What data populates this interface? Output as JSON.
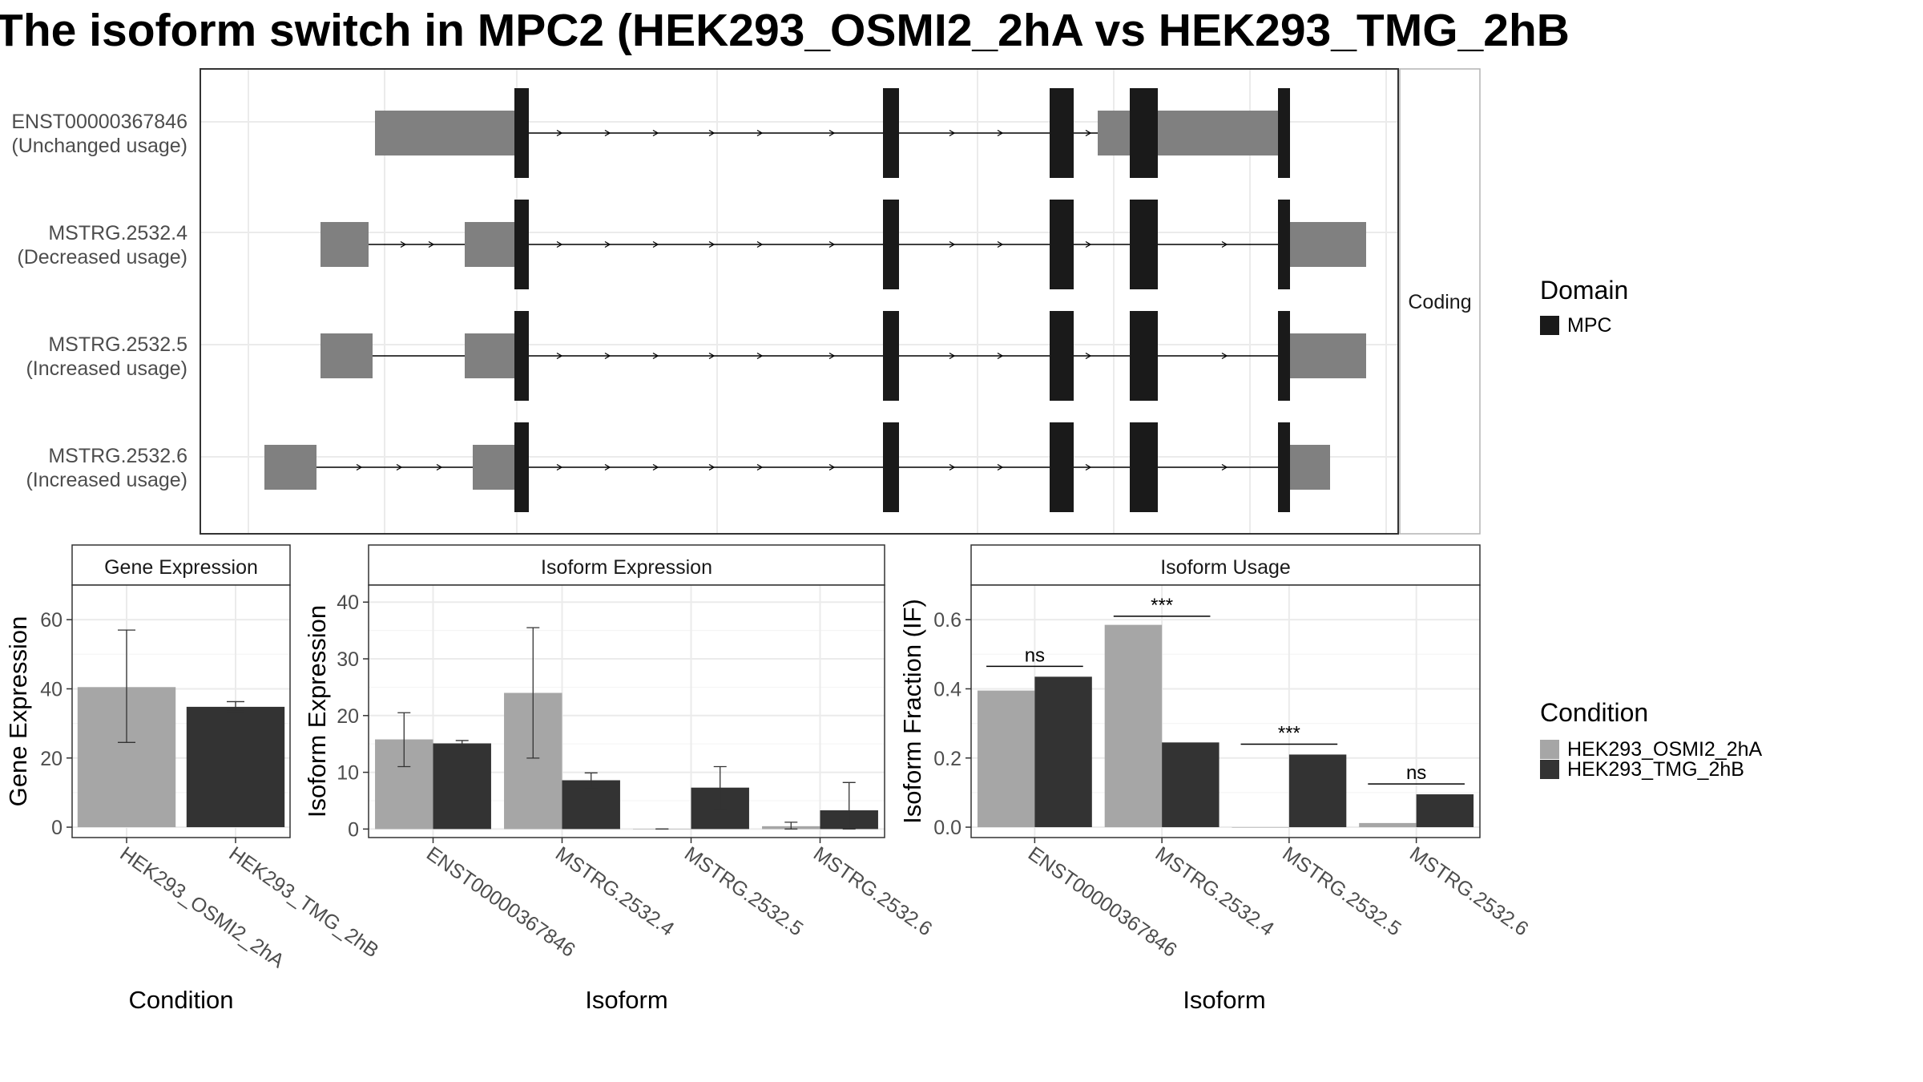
{
  "title": "The isoform switch in MPC2 (HEK293_OSMI2_2hA vs HEK293_TMG_2hB",
  "colors": {
    "utr": "#808080",
    "domain": "#1a1a1a",
    "cond_a": "#a6a6a6",
    "cond_b": "#333333",
    "grid": "#ebebeb",
    "strip": "#ffffff",
    "panel_border": "#333333"
  },
  "structure": {
    "strip_label": "Coding",
    "isoforms": [
      {
        "id": "ENST00000367846",
        "usage": "(Unchanged usage)",
        "utr": [
          [
            218,
            392
          ],
          [
            1120,
            1360
          ]
        ],
        "cds": [
          [
            392,
            410
          ],
          [
            852,
            872
          ],
          [
            1060,
            1090
          ],
          [
            1160,
            1195
          ],
          [
            1345,
            1360
          ]
        ],
        "arrows": [
          450,
          510,
          570,
          640,
          700,
          790,
          940,
          1000,
          1110,
          1280
        ]
      },
      {
        "id": "MSTRG.2532.4",
        "usage": "(Decreased usage)",
        "utr": [
          [
            150,
            210
          ],
          [
            330,
            392
          ],
          [
            1360,
            1455
          ]
        ],
        "cds": [
          [
            392,
            410
          ],
          [
            852,
            872
          ],
          [
            1060,
            1090
          ],
          [
            1160,
            1195
          ],
          [
            1345,
            1360
          ]
        ],
        "arrows": [
          255,
          290,
          450,
          510,
          570,
          640,
          700,
          790,
          940,
          1000,
          1110,
          1280
        ]
      },
      {
        "id": "MSTRG.2532.5",
        "usage": "(Increased usage)",
        "utr": [
          [
            150,
            215
          ],
          [
            330,
            392
          ],
          [
            1360,
            1455
          ]
        ],
        "cds": [
          [
            392,
            410
          ],
          [
            852,
            872
          ],
          [
            1060,
            1090
          ],
          [
            1160,
            1195
          ],
          [
            1345,
            1360
          ]
        ],
        "arrows": [
          450,
          510,
          570,
          640,
          700,
          790,
          940,
          1000,
          1110,
          1280
        ]
      },
      {
        "id": "MSTRG.2532.6",
        "usage": "(Increased usage)",
        "utr": [
          [
            80,
            145
          ],
          [
            340,
            392
          ],
          [
            1360,
            1410
          ]
        ],
        "cds": [
          [
            392,
            410
          ],
          [
            852,
            872
          ],
          [
            1060,
            1090
          ],
          [
            1160,
            1195
          ],
          [
            1345,
            1360
          ]
        ],
        "arrows": [
          200,
          250,
          300,
          450,
          510,
          570,
          640,
          700,
          790,
          940,
          1000,
          1110,
          1280
        ]
      }
    ]
  },
  "legend_domain": {
    "title": "Domain",
    "items": [
      "MPC"
    ]
  },
  "legend_condition": {
    "title": "Condition",
    "items": [
      "HEK293_OSMI2_2hA",
      "HEK293_TMG_2hB"
    ]
  },
  "chart_data": [
    {
      "type": "bar",
      "panel": "Gene Expression",
      "xlabel": "Condition",
      "ylabel": "Gene Expression",
      "ylim": [
        -3,
        70
      ],
      "yticks": [
        0,
        20,
        40,
        60
      ],
      "categories": [
        "HEK293_OSMI2_2hA",
        "HEK293_TMG_2hB"
      ],
      "values": [
        40.5,
        34.8
      ],
      "errors": [
        [
          24.5,
          57
        ],
        [
          33.5,
          36.3
        ]
      ],
      "colors": [
        "cond_a",
        "cond_b"
      ]
    },
    {
      "type": "bar",
      "panel": "Isoform Expression",
      "xlabel": "Isoform",
      "ylabel": "Isoform Expression",
      "ylim": [
        -1.5,
        43
      ],
      "yticks": [
        0,
        10,
        20,
        30,
        40
      ],
      "categories": [
        "ENST00000367846",
        "MSTRG.2532.4",
        "MSTRG.2532.5",
        "MSTRG.2532.6"
      ],
      "series": [
        {
          "name": "HEK293_OSMI2_2hA",
          "values": [
            15.8,
            24,
            0,
            0.5
          ],
          "errors": [
            [
              11,
              20.5
            ],
            [
              12.5,
              35.5
            ],
            [
              0,
              0
            ],
            [
              0,
              1.2
            ]
          ]
        },
        {
          "name": "HEK293_TMG_2hB",
          "values": [
            15.1,
            8.6,
            7.3,
            3.3
          ],
          "errors": [
            [
              14.6,
              15.6
            ],
            [
              7.3,
              9.9
            ],
            [
              3.5,
              11
            ],
            [
              0,
              8.2
            ]
          ]
        }
      ]
    },
    {
      "type": "bar",
      "panel": "Isoform Usage",
      "xlabel": "Isoform",
      "ylabel": "Isoform Fraction (IF)",
      "ylim": [
        -0.03,
        0.7
      ],
      "yticks": [
        "0.0",
        "0.2",
        "0.4",
        "0.6"
      ],
      "categories": [
        "ENST00000367846",
        "MSTRG.2532.4",
        "MSTRG.2532.5",
        "MSTRG.2532.6"
      ],
      "series": [
        {
          "name": "HEK293_OSMI2_2hA",
          "values": [
            0.395,
            0.585,
            0.0,
            0.012
          ]
        },
        {
          "name": "HEK293_TMG_2hB",
          "values": [
            0.435,
            0.245,
            0.21,
            0.095
          ]
        }
      ],
      "significance": [
        {
          "label": "ns",
          "y": 0.465
        },
        {
          "label": "***",
          "y": 0.61
        },
        {
          "label": "***",
          "y": 0.24
        },
        {
          "label": "ns",
          "y": 0.125
        }
      ]
    }
  ]
}
